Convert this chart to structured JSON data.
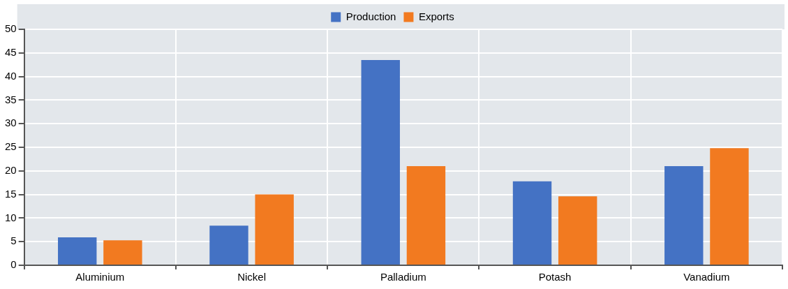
{
  "chart_data": {
    "type": "bar",
    "categories": [
      "Aluminium",
      "Nickel",
      "Palladium",
      "Potash",
      "Vanadium"
    ],
    "series": [
      {
        "name": "Production",
        "color": "#4472c4",
        "values": [
          5.9,
          8.4,
          43.5,
          17.8,
          21.0
        ]
      },
      {
        "name": "Exports",
        "color": "#f27a20",
        "values": [
          5.3,
          15.0,
          21.0,
          14.6,
          24.8
        ]
      }
    ],
    "ylim": [
      0,
      50
    ],
    "yticks": [
      0,
      5,
      10,
      15,
      20,
      25,
      30,
      35,
      40,
      45,
      50
    ],
    "grid": true,
    "legend": "top"
  }
}
